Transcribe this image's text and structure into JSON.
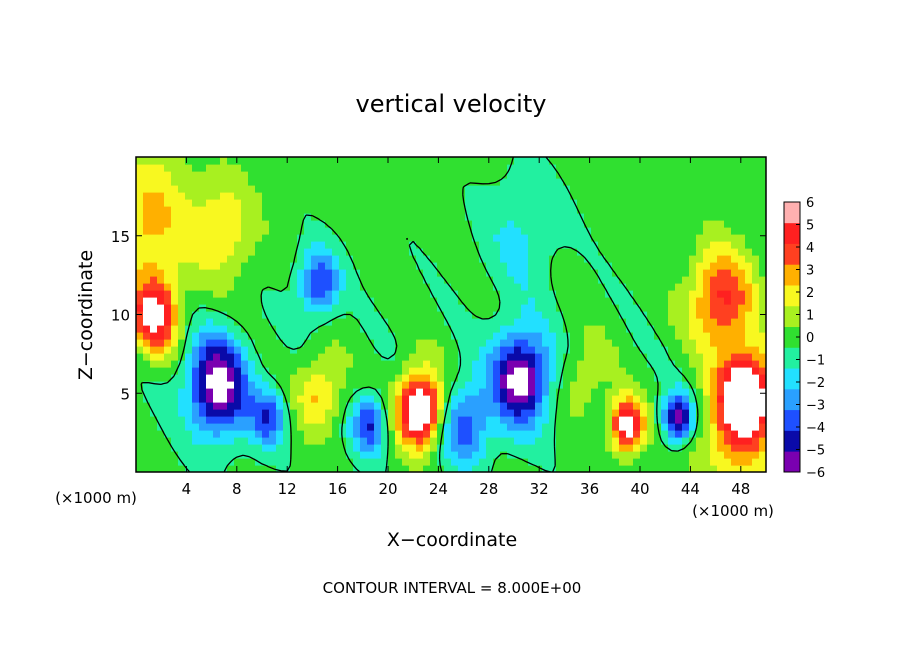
{
  "chart_data": {
    "type": "heatmap",
    "title": "vertical velocity",
    "xlabel": "X−coordinate",
    "ylabel": "Z−coordinate",
    "x_unit_label": "(×1000 m)",
    "footer": "CONTOUR INTERVAL = 8.000E+00",
    "xlim": [
      0,
      50
    ],
    "ylim": [
      0,
      20
    ],
    "x_ticks": [
      4,
      8,
      12,
      16,
      20,
      24,
      28,
      32,
      36,
      40,
      44,
      48
    ],
    "y_ticks": [
      5,
      10,
      15
    ],
    "colorbar": {
      "min": -6,
      "max": 6,
      "ticks": [
        6,
        5,
        4,
        3,
        2,
        1,
        0,
        -1,
        -2,
        -3,
        -4,
        -5,
        -6
      ],
      "tick_labels": [
        "6",
        "5",
        "4",
        "3",
        "2",
        "1",
        "0",
        "−1",
        "−2",
        "−3",
        "−4",
        "−5",
        "−6"
      ],
      "colors": [
        "#7a00b0",
        "#0a0aa8",
        "#1e50ff",
        "#2aa0ff",
        "#22e0ff",
        "#22f0a0",
        "#30e030",
        "#a8f020",
        "#f8f820",
        "#ffb000",
        "#ff4020",
        "#ff2020",
        "#ffb0b0"
      ]
    },
    "features": [
      {
        "x": 1.5,
        "z": 10,
        "w": 1.8,
        "amp": 6
      },
      {
        "x": 1.0,
        "z": 16,
        "w": 3.5,
        "amp": 3
      },
      {
        "x": 6.5,
        "z": 5.5,
        "w": 2.4,
        "amp": -7
      },
      {
        "x": 7.0,
        "z": 15.5,
        "w": 2.5,
        "amp": 2.5
      },
      {
        "x": 10.5,
        "z": 3.5,
        "w": 1.4,
        "amp": -4
      },
      {
        "x": 14.5,
        "z": 12,
        "w": 1.6,
        "amp": -4.5
      },
      {
        "x": 14.5,
        "z": 5,
        "w": 1.8,
        "amp": 3
      },
      {
        "x": 18.5,
        "z": 3,
        "w": 1.4,
        "amp": -4.5
      },
      {
        "x": 22.5,
        "z": 4,
        "w": 1.8,
        "amp": 8
      },
      {
        "x": 26,
        "z": 3,
        "w": 2,
        "amp": -4
      },
      {
        "x": 30.5,
        "z": 6,
        "w": 2.3,
        "amp": -7
      },
      {
        "x": 30.5,
        "z": 15,
        "w": 3,
        "amp": -1.5
      },
      {
        "x": 35.5,
        "z": 6,
        "w": 2,
        "amp": 1.5
      },
      {
        "x": 39,
        "z": 3,
        "w": 1.3,
        "amp": 7
      },
      {
        "x": 43,
        "z": 3.5,
        "w": 1.2,
        "amp": -6
      },
      {
        "x": 46.5,
        "z": 11,
        "w": 2.5,
        "amp": 5
      },
      {
        "x": 48.5,
        "z": 5,
        "w": 2,
        "amp": 8
      },
      {
        "x": 47.5,
        "z": 2,
        "w": 3,
        "amp": 3
      }
    ]
  }
}
